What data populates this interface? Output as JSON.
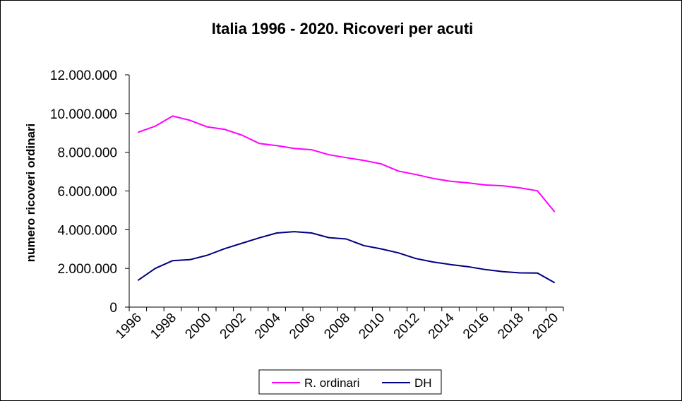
{
  "chart_data": {
    "type": "line",
    "title": "Italia 1996 - 2020. Ricoveri per acuti",
    "xlabel": "",
    "ylabel": "numero ricoveri ordinari",
    "x": [
      1996,
      1997,
      1998,
      1999,
      2000,
      2001,
      2002,
      2003,
      2004,
      2005,
      2006,
      2007,
      2008,
      2009,
      2010,
      2011,
      2012,
      2013,
      2014,
      2015,
      2016,
      2017,
      2018,
      2019,
      2020
    ],
    "x_tick_labels": [
      "1996",
      "1998",
      "2000",
      "2002",
      "2004",
      "2006",
      "2008",
      "2010",
      "2012",
      "2014",
      "2016",
      "2018",
      "2020"
    ],
    "ylim": [
      0,
      12000000
    ],
    "y_tick_labels": [
      "0",
      "2.000.000",
      "4.000.000",
      "6.000.000",
      "8.000.000",
      "10.000.000",
      "12.000.000"
    ],
    "y_ticks": [
      0,
      2000000,
      4000000,
      6000000,
      8000000,
      10000000,
      12000000
    ],
    "grid": false,
    "legend_position": "bottom",
    "series": [
      {
        "name": "R. ordinari",
        "color": "#FF00FF",
        "values": [
          9030000,
          9350000,
          9870000,
          9650000,
          9310000,
          9180000,
          8880000,
          8450000,
          8340000,
          8200000,
          8130000,
          7870000,
          7720000,
          7580000,
          7400000,
          7030000,
          6850000,
          6650000,
          6500000,
          6420000,
          6310000,
          6270000,
          6160000,
          6010000,
          4920000
        ]
      },
      {
        "name": "DH",
        "color": "#000080",
        "values": [
          1380000,
          2000000,
          2400000,
          2450000,
          2680000,
          3020000,
          3300000,
          3580000,
          3830000,
          3900000,
          3830000,
          3590000,
          3520000,
          3180000,
          3010000,
          2800000,
          2510000,
          2330000,
          2200000,
          2090000,
          1940000,
          1830000,
          1770000,
          1760000,
          1260000
        ]
      }
    ]
  }
}
